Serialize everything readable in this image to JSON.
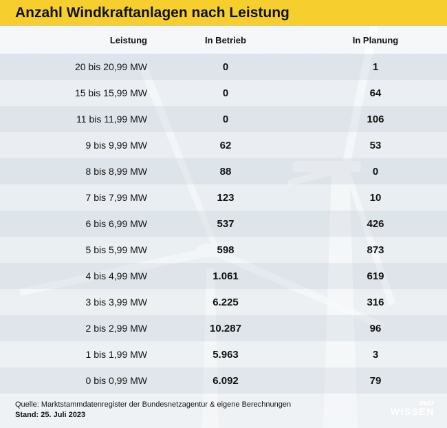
{
  "title": "Anzahl Windkraftanlagen nach Leistung",
  "colors": {
    "title_bar": "#f6cf2e",
    "text": "#111111"
  },
  "chart_data": {
    "type": "table",
    "title": "Anzahl Windkraftanlagen nach Leistung",
    "columns": [
      "Leistung",
      "In Betrieb",
      "In Planung"
    ],
    "rows": [
      {
        "leistung": "20 bis 20,99 MW",
        "in_betrieb": "0",
        "in_planung": "1"
      },
      {
        "leistung": "15 bis 15,99 MW",
        "in_betrieb": "0",
        "in_planung": "64"
      },
      {
        "leistung": "11 bis 11,99 MW",
        "in_betrieb": "0",
        "in_planung": "106"
      },
      {
        "leistung": "9 bis 9,99 MW",
        "in_betrieb": "62",
        "in_planung": "53"
      },
      {
        "leistung": "8 bis 8,99 MW",
        "in_betrieb": "88",
        "in_planung": "0"
      },
      {
        "leistung": "7 bis 7,99 MW",
        "in_betrieb": "123",
        "in_planung": "10"
      },
      {
        "leistung": "6 bis 6,99 MW",
        "in_betrieb": "537",
        "in_planung": "426"
      },
      {
        "leistung": "5 bis 5,99 MW",
        "in_betrieb": "598",
        "in_planung": "873"
      },
      {
        "leistung": "4 bis 4,99 MW",
        "in_betrieb": "1.061",
        "in_planung": "619"
      },
      {
        "leistung": "3 bis 3,99 MW",
        "in_betrieb": "6.225",
        "in_planung": "316"
      },
      {
        "leistung": "2 bis 2,99 MW",
        "in_betrieb": "10.287",
        "in_planung": "96"
      },
      {
        "leistung": "1 bis 1,99 MW",
        "in_betrieb": "5.963",
        "in_planung": "3"
      },
      {
        "leistung": "0 bis 0,99 MW",
        "in_betrieb": "6.092",
        "in_planung": "79"
      }
    ]
  },
  "footer": {
    "source": "Quelle: Marktstammdatenregister der Bundesnetzagentur & eigene Berechnungen",
    "date": "Stand: 25. Juli 2023"
  },
  "logo": {
    "brand": "mdr",
    "sub": "WISSEN"
  }
}
